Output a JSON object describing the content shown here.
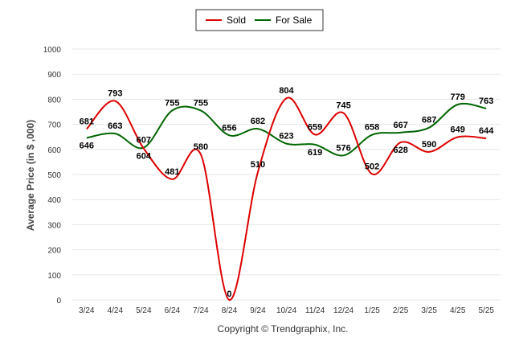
{
  "chart_data": {
    "type": "line",
    "categories": [
      "3/24",
      "4/24",
      "5/24",
      "6/24",
      "7/24",
      "8/24",
      "9/24",
      "10/24",
      "11/24",
      "12/24",
      "1/25",
      "2/25",
      "3/25",
      "4/25",
      "5/25"
    ],
    "series": [
      {
        "name": "Sold",
        "color": "#dd0000",
        "values": [
          681,
          793,
          604,
          481,
          580,
          0,
          510,
          804,
          659,
          745,
          502,
          628,
          590,
          649,
          644
        ]
      },
      {
        "name": "For Sale",
        "color": "#006600",
        "values": [
          646,
          663,
          607,
          755,
          755,
          656,
          682,
          623,
          619,
          576,
          658,
          667,
          687,
          779,
          763
        ]
      }
    ],
    "ylabel": "Average Price (in $ ,000)",
    "ylim": [
      0,
      1000
    ],
    "yticks": [
      0,
      100,
      200,
      300,
      400,
      500,
      600,
      700,
      800,
      900,
      1000
    ],
    "grid": true,
    "legend_position": "top-center"
  },
  "footer": {
    "copyright": "Copyright © Trendgraphix, Inc."
  }
}
